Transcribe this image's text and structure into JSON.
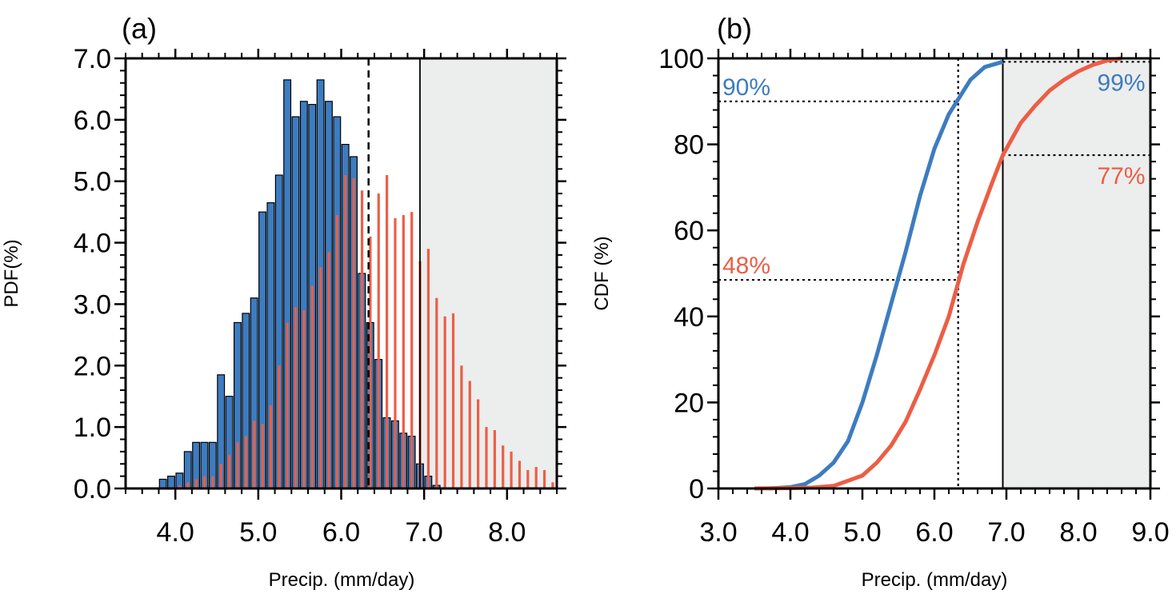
{
  "colors": {
    "blue": "#3d7cc0",
    "red": "#ec5e45",
    "shade": "#eceded",
    "axis": "#000000"
  },
  "chart_data": [
    {
      "type": "bar",
      "panel_label": "(a)",
      "xlabel": "Precip. (mm/day)",
      "ylabel": "PDF(%)",
      "xlim": [
        3.4,
        8.6
      ],
      "ylim": [
        0,
        7
      ],
      "xticks": [
        4.0,
        5.0,
        6.0,
        7.0,
        8.0
      ],
      "xtick_labels": [
        "4.0",
        "5.0",
        "6.0",
        "7.0",
        "8.0"
      ],
      "yticks": [
        0,
        1,
        2,
        3,
        4,
        5,
        6,
        7
      ],
      "ytick_labels": [
        "0.0",
        "1.0",
        "2.0",
        "3.0",
        "4.0",
        "5.0",
        "6.0",
        "7.0"
      ],
      "shaded_region": [
        6.95,
        8.6
      ],
      "vlines": [
        {
          "x": 6.33,
          "style": "dashed"
        },
        {
          "x": 6.95,
          "style": "solid"
        }
      ],
      "series": [
        {
          "color": "blue",
          "x": [
            3.85,
            3.95,
            4.05,
            4.15,
            4.25,
            4.35,
            4.45,
            4.55,
            4.65,
            4.75,
            4.85,
            4.95,
            5.05,
            5.15,
            5.25,
            5.35,
            5.45,
            5.55,
            5.65,
            5.75,
            5.85,
            5.95,
            6.05,
            6.15,
            6.25,
            6.35,
            6.45,
            6.55,
            6.65,
            6.75,
            6.85,
            6.95,
            7.05,
            7.15
          ],
          "values": [
            0.15,
            0.2,
            0.25,
            0.6,
            0.75,
            0.75,
            0.75,
            1.85,
            1.5,
            2.7,
            2.85,
            3.1,
            4.5,
            4.65,
            5.1,
            6.65,
            6.05,
            6.3,
            6.25,
            6.65,
            6.3,
            6.05,
            5.6,
            5.4,
            3.5,
            2.7,
            2.1,
            1.15,
            1.1,
            0.9,
            0.85,
            0.4,
            0.2,
            0.05
          ]
        },
        {
          "color": "red",
          "x": [
            4.05,
            4.15,
            4.25,
            4.35,
            4.45,
            4.55,
            4.65,
            4.75,
            4.85,
            4.95,
            5.05,
            5.15,
            5.25,
            5.35,
            5.45,
            5.55,
            5.65,
            5.75,
            5.85,
            5.95,
            6.05,
            6.15,
            6.25,
            6.35,
            6.45,
            6.55,
            6.65,
            6.75,
            6.85,
            6.95,
            7.05,
            7.15,
            7.25,
            7.35,
            7.45,
            7.55,
            7.65,
            7.75,
            7.85,
            7.95,
            8.05,
            8.15,
            8.25,
            8.35,
            8.45,
            8.55
          ],
          "values": [
            0.05,
            0.1,
            0.15,
            0.2,
            0.2,
            0.4,
            0.55,
            0.75,
            0.85,
            1.1,
            1.05,
            1.35,
            2.0,
            2.7,
            2.95,
            2.9,
            3.3,
            3.6,
            3.85,
            4.45,
            5.1,
            5.05,
            4.85,
            4.1,
            4.8,
            5.1,
            4.4,
            4.45,
            4.5,
            3.7,
            3.9,
            3.1,
            2.8,
            2.85,
            2.0,
            1.75,
            1.45,
            1.0,
            0.95,
            0.7,
            0.6,
            0.45,
            0.3,
            0.35,
            0.3,
            0.1
          ]
        }
      ]
    },
    {
      "type": "line",
      "panel_label": "(b)",
      "xlabel": "Precip. (mm/day)",
      "ylabel": "CDF (%)",
      "xlim": [
        3.0,
        9.0
      ],
      "ylim": [
        0,
        100
      ],
      "xticks": [
        3.0,
        4.0,
        5.0,
        6.0,
        7.0,
        8.0,
        9.0
      ],
      "xtick_labels": [
        "3.0",
        "4.0",
        "5.0",
        "6.0",
        "7.0",
        "8.0",
        "9.0"
      ],
      "yticks": [
        0,
        20,
        40,
        60,
        80,
        100
      ],
      "ytick_labels": [
        "0",
        "20",
        "40",
        "60",
        "80",
        "100"
      ],
      "shaded_region": [
        6.95,
        9.0
      ],
      "vlines": [
        {
          "x": 6.33,
          "style": "dotted"
        },
        {
          "x": 6.95,
          "style": "solid"
        }
      ],
      "hlines": [
        {
          "y": 90,
          "x_from": 3.0,
          "x_to": 6.33
        },
        {
          "y": 48.5,
          "x_from": 3.0,
          "x_to": 6.33
        },
        {
          "y": 99.2,
          "x_from": 6.95,
          "x_to": 9.0
        },
        {
          "y": 77.5,
          "x_from": 6.95,
          "x_to": 9.0
        }
      ],
      "annotations": [
        {
          "text": "90%",
          "color": "blue",
          "x": 3.1,
          "y": 90
        },
        {
          "text": "48%",
          "color": "red",
          "x": 3.1,
          "y": 48.5
        },
        {
          "text": "99%",
          "color": "blue",
          "x": 8.95,
          "y": 99.2
        },
        {
          "text": "77%",
          "color": "red",
          "x": 8.95,
          "y": 77.5
        }
      ],
      "series": [
        {
          "color": "blue",
          "x": [
            3.7,
            4.0,
            4.2,
            4.4,
            4.6,
            4.8,
            5.0,
            5.2,
            5.4,
            5.6,
            5.8,
            6.0,
            6.2,
            6.35,
            6.5,
            6.7,
            6.95
          ],
          "values": [
            0,
            0.3,
            1,
            3,
            6,
            11,
            20,
            31,
            43,
            55,
            68,
            79,
            87,
            91,
            95,
            98,
            99.2
          ]
        },
        {
          "color": "red",
          "x": [
            3.5,
            4.0,
            4.3,
            4.6,
            5.0,
            5.2,
            5.4,
            5.6,
            5.8,
            6.0,
            6.2,
            6.4,
            6.6,
            6.8,
            6.95,
            7.2,
            7.4,
            7.6,
            7.8,
            8.0,
            8.2,
            8.4,
            8.6
          ],
          "values": [
            0,
            0.1,
            0.2,
            0.6,
            3,
            6,
            10,
            15.5,
            23,
            31,
            40,
            52,
            62,
            71,
            77.5,
            85,
            89,
            92.5,
            95,
            97,
            98.5,
            99.5,
            100
          ]
        }
      ]
    }
  ]
}
